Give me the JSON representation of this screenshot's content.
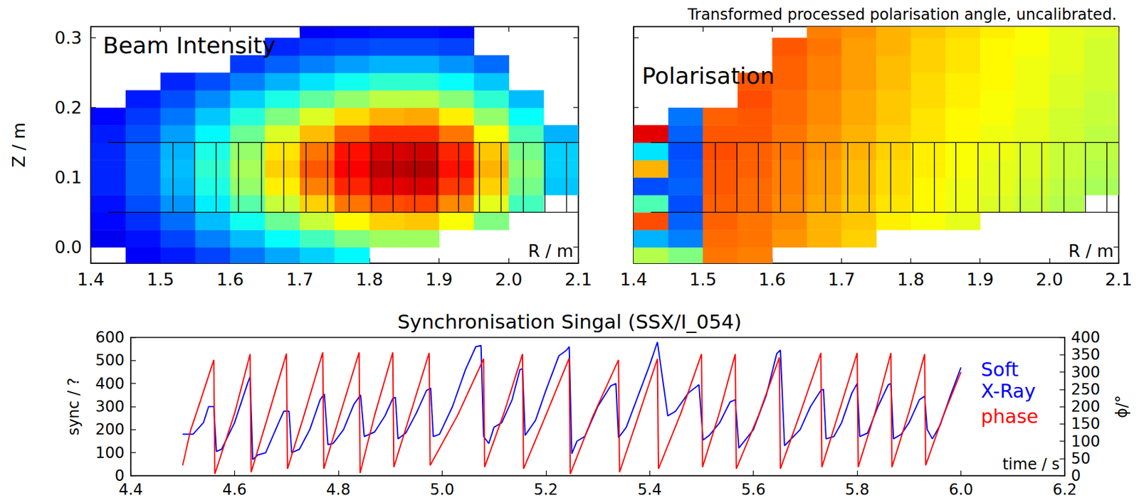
{
  "chart_data": [
    {
      "type": "heatmap",
      "title": "Beam Intensity",
      "xlabel": "R / m",
      "ylabel": "Z / m",
      "xlim": [
        1.4,
        2.1
      ],
      "xticks": [
        1.4,
        1.5,
        1.6,
        1.7,
        1.8,
        1.9,
        {
          "value": 2,
          "label": "2.0"
        },
        2.1
      ],
      "ylim": [
        -0.023,
        0.316
      ],
      "yticks": [
        {
          "value": 0,
          "label": "0.0"
        },
        0.1,
        0.2,
        0.3
      ],
      "grid": false,
      "color_range": [
        0,
        1
      ],
      "r": [
        1.425,
        1.475,
        1.525,
        1.575,
        1.625,
        1.675,
        1.725,
        1.775,
        1.825,
        1.875,
        1.925,
        1.975,
        2.025,
        2.075
      ],
      "z": [
        -0.0125,
        0.0125,
        0.0375,
        0.0625,
        0.0875,
        0.1125,
        0.1375,
        0.1625,
        0.1875,
        0.2125,
        0.2375,
        0.2625,
        0.2875,
        0.3125
      ],
      "cells": [
        [
          null,
          0.12,
          0.15,
          0.19,
          0.24,
          0.29,
          0.33,
          0.37,
          null,
          null,
          null,
          null,
          null,
          null
        ],
        [
          0.11,
          0.14,
          0.19,
          0.25,
          0.31,
          0.38,
          0.44,
          0.5,
          0.53,
          0.53,
          null,
          null,
          null,
          null
        ],
        [
          0.13,
          0.17,
          0.23,
          0.31,
          0.39,
          0.48,
          0.57,
          0.63,
          0.67,
          0.68,
          0.62,
          0.5,
          null,
          null
        ],
        [
          0.14,
          0.2,
          0.27,
          0.36,
          0.46,
          0.57,
          0.67,
          0.76,
          0.8,
          0.81,
          0.74,
          0.6,
          0.44,
          null
        ],
        [
          0.16,
          0.22,
          0.3,
          0.4,
          0.52,
          0.64,
          0.75,
          0.84,
          0.9,
          0.91,
          0.82,
          0.67,
          0.49,
          0.32
        ],
        [
          0.16,
          0.22,
          0.31,
          0.42,
          0.54,
          0.67,
          0.79,
          0.88,
          0.94,
          0.95,
          0.86,
          0.7,
          0.51,
          0.33
        ],
        [
          0.16,
          0.22,
          0.3,
          0.4,
          0.52,
          0.65,
          0.76,
          0.86,
          0.91,
          0.92,
          0.84,
          0.68,
          0.49,
          0.33
        ],
        [
          0.15,
          0.2,
          0.28,
          0.37,
          0.48,
          0.59,
          0.69,
          0.78,
          0.83,
          0.83,
          0.76,
          0.62,
          0.45,
          0.3
        ],
        [
          0.13,
          0.18,
          0.24,
          0.32,
          0.41,
          0.5,
          0.59,
          0.66,
          0.7,
          0.71,
          0.64,
          0.52,
          0.38,
          null
        ],
        [
          null,
          0.15,
          0.2,
          0.26,
          0.33,
          0.4,
          0.47,
          0.52,
          0.56,
          0.56,
          0.51,
          0.42,
          0.31,
          null
        ],
        [
          null,
          null,
          0.16,
          0.2,
          0.25,
          0.3,
          0.35,
          0.39,
          0.42,
          0.42,
          0.38,
          0.32,
          null,
          null
        ],
        [
          null,
          null,
          null,
          null,
          0.18,
          0.22,
          0.25,
          0.28,
          0.3,
          0.3,
          0.27,
          0.23,
          null,
          null
        ],
        [
          null,
          null,
          null,
          null,
          null,
          0.16,
          0.18,
          0.19,
          0.2,
          0.2,
          0.19,
          null,
          null,
          null
        ],
        [
          null,
          null,
          null,
          null,
          null,
          null,
          0.12,
          0.13,
          0.14,
          0.14,
          0.13,
          null,
          null,
          null
        ]
      ],
      "channels": {
        "z": [
          0.05,
          0.15
        ],
        "r_range": [
          1.425,
          2.1
        ],
        "r_edges": [
          1.518,
          1.549,
          1.58,
          1.612,
          1.645,
          1.677,
          1.709,
          1.74,
          1.771,
          1.803,
          1.834,
          1.865,
          1.897,
          1.928,
          1.958,
          1.989,
          2.021,
          2.052,
          2.083
        ]
      }
    },
    {
      "type": "heatmap",
      "title": "Polarisation",
      "subtitle": "Transformed processed polarisation angle, uncalibrated.",
      "xlabel": "R / m",
      "xlim": [
        1.4,
        2.1
      ],
      "xticks": [
        1.4,
        1.5,
        1.6,
        1.7,
        1.8,
        1.9,
        {
          "value": 2,
          "label": "2.0"
        },
        2.1
      ],
      "ylim": [
        -0.023,
        0.316
      ],
      "yticks": [
        {
          "value": 0,
          "label": "0.0"
        },
        0.1,
        0.2,
        0.3
      ],
      "tick_labels": "x",
      "grid": false,
      "color_range": [
        0,
        1
      ],
      "r": [
        1.425,
        1.475,
        1.525,
        1.575,
        1.625,
        1.675,
        1.725,
        1.775,
        1.825,
        1.875,
        1.925,
        1.975,
        2.025,
        2.075
      ],
      "z": [
        -0.0125,
        0.0125,
        0.0375,
        0.0625,
        0.0875,
        0.1125,
        0.1375,
        0.1625,
        0.1875,
        0.2125,
        0.2375,
        0.2625,
        0.2875,
        0.3125
      ],
      "cells": [
        [
          0.55,
          0.5,
          0.76,
          0.75,
          null,
          null,
          null,
          null,
          null,
          null,
          null,
          null,
          null,
          null
        ],
        [
          0.3,
          0.25,
          0.77,
          0.76,
          0.73,
          0.7,
          0.67,
          null,
          null,
          null,
          null,
          null,
          null,
          null
        ],
        [
          0.8,
          0.22,
          0.78,
          0.76,
          0.74,
          0.7,
          0.68,
          0.64,
          0.62,
          0.6,
          null,
          null,
          null,
          null
        ],
        [
          0.45,
          0.2,
          0.78,
          0.77,
          0.74,
          0.71,
          0.68,
          0.65,
          0.63,
          0.61,
          0.59,
          0.57,
          0.55,
          null
        ],
        [
          0.2,
          0.22,
          0.79,
          0.77,
          0.75,
          0.72,
          0.69,
          0.66,
          0.63,
          0.61,
          0.6,
          0.58,
          0.56,
          0.54
        ],
        [
          0.7,
          0.21,
          0.79,
          0.78,
          0.75,
          0.72,
          0.69,
          0.66,
          0.64,
          0.62,
          0.6,
          0.59,
          0.57,
          0.55
        ],
        [
          0.35,
          0.2,
          0.8,
          0.78,
          0.76,
          0.73,
          0.7,
          0.67,
          0.64,
          0.62,
          0.61,
          0.59,
          0.57,
          0.56
        ],
        [
          0.9,
          0.22,
          0.79,
          0.79,
          0.76,
          0.73,
          0.7,
          0.67,
          0.65,
          0.63,
          0.61,
          0.6,
          0.58,
          0.56
        ],
        [
          null,
          0.24,
          0.78,
          0.79,
          0.77,
          0.74,
          0.71,
          0.68,
          0.65,
          0.63,
          0.62,
          0.6,
          0.58,
          0.57
        ],
        [
          null,
          null,
          null,
          0.8,
          0.77,
          0.74,
          0.71,
          0.68,
          0.66,
          0.64,
          0.62,
          0.61,
          0.59,
          0.57
        ],
        [
          null,
          null,
          null,
          0.79,
          0.78,
          0.75,
          0.72,
          0.69,
          0.66,
          0.64,
          0.63,
          0.61,
          0.59,
          0.58
        ],
        [
          null,
          null,
          null,
          null,
          0.78,
          0.75,
          0.72,
          0.69,
          0.67,
          0.65,
          0.63,
          0.61,
          0.6,
          0.58
        ],
        [
          null,
          null,
          null,
          null,
          0.79,
          0.76,
          0.72,
          0.7,
          0.67,
          0.65,
          0.63,
          0.62,
          0.6,
          0.58
        ],
        [
          null,
          null,
          null,
          null,
          null,
          0.75,
          0.73,
          0.7,
          0.68,
          0.66,
          0.64,
          0.62,
          0.6,
          0.59
        ]
      ],
      "channels": {
        "z": [
          0.05,
          0.15
        ],
        "r_range": [
          1.425,
          2.1
        ],
        "r_edges": [
          1.518,
          1.549,
          1.58,
          1.612,
          1.645,
          1.677,
          1.709,
          1.74,
          1.771,
          1.803,
          1.834,
          1.865,
          1.897,
          1.928,
          1.958,
          1.989,
          2.021,
          2.052,
          2.083
        ]
      }
    },
    {
      "type": "line",
      "title": "Synchronisation Singal (SSX/I_054)",
      "xlabel": "time / s",
      "ylabel": "sync / ?",
      "y2label": "ϕ/°",
      "xlim": [
        4.4,
        6.2
      ],
      "xticks": [
        4.4,
        4.6,
        4.8,
        {
          "value": 5,
          "label": "5.0"
        },
        5.2,
        5.4,
        5.6,
        5.8,
        {
          "value": 6,
          "label": "6.0"
        },
        6.2
      ],
      "ylim": [
        0,
        600
      ],
      "yticks": [
        0,
        100,
        200,
        300,
        400,
        500,
        600
      ],
      "y2lim": [
        0,
        400
      ],
      "y2ticks": [
        0,
        50,
        100,
        150,
        200,
        250,
        300,
        350,
        400
      ],
      "grid": false,
      "legend": "right",
      "series": [
        {
          "name": "Soft X-Ray",
          "color": "#0000ff",
          "x": [
            4.5,
            4.52,
            4.54,
            4.55,
            4.56,
            4.565,
            4.575,
            4.6,
            4.625,
            4.63,
            4.635,
            4.645,
            4.66,
            4.685,
            4.695,
            4.705,
            4.71,
            4.725,
            4.745,
            4.765,
            4.773,
            4.78,
            4.79,
            4.81,
            4.83,
            4.843,
            4.85,
            4.87,
            4.89,
            4.905,
            4.91,
            4.915,
            4.93,
            4.95,
            4.97,
            4.978,
            4.983,
            4.995,
            5.02,
            5.045,
            5.065,
            5.075,
            5.08,
            5.09,
            5.1,
            5.115,
            5.135,
            5.15,
            5.155,
            5.16,
            5.18,
            5.2,
            5.225,
            5.24,
            5.245,
            5.25,
            5.26,
            5.275,
            5.3,
            5.325,
            5.335,
            5.34,
            5.355,
            5.38,
            5.4,
            5.415,
            5.425,
            5.435,
            5.45,
            5.475,
            5.495,
            5.503,
            5.515,
            5.535,
            5.555,
            5.565,
            5.572,
            5.6,
            5.625,
            5.645,
            5.652,
            5.66,
            5.675,
            5.69,
            5.71,
            5.73,
            5.735,
            5.74,
            5.755,
            5.77,
            5.79,
            5.8,
            5.805,
            5.82,
            5.84,
            5.86,
            5.865,
            5.87,
            5.885,
            5.9,
            5.92,
            5.93,
            5.935,
            5.945,
            5.96,
            5.98,
            6.0
          ],
          "values": [
            180,
            180,
            230,
            300,
            300,
            105,
            115,
            230,
            400,
            430,
            70,
            90,
            100,
            230,
            280,
            280,
            100,
            115,
            200,
            330,
            355,
            135,
            140,
            200,
            310,
            350,
            170,
            190,
            260,
            335,
            340,
            160,
            185,
            270,
            370,
            380,
            170,
            180,
            300,
            460,
            560,
            565,
            170,
            140,
            210,
            230,
            330,
            460,
            465,
            175,
            240,
            370,
            520,
            545,
            560,
            95,
            150,
            170,
            300,
            390,
            400,
            165,
            210,
            360,
            480,
            580,
            420,
            260,
            280,
            360,
            395,
            155,
            175,
            230,
            320,
            330,
            120,
            200,
            350,
            530,
            545,
            130,
            165,
            200,
            300,
            370,
            375,
            160,
            170,
            230,
            360,
            400,
            170,
            185,
            300,
            395,
            400,
            160,
            180,
            230,
            330,
            345,
            200,
            160,
            220,
            350,
            470
          ]
        },
        {
          "name": "phase",
          "color": "#ff0000",
          "axis": "y2",
          "x": [
            4.5,
            4.515,
            4.535,
            4.56,
            4.562,
            4.6,
            4.63,
            4.632,
            4.665,
            4.7,
            4.702,
            4.735,
            4.77,
            4.772,
            4.805,
            4.84,
            4.842,
            4.87,
            4.905,
            4.907,
            4.94,
            4.975,
            4.977,
            5.03,
            5.08,
            5.082,
            5.12,
            5.155,
            5.157,
            5.2,
            5.245,
            5.247,
            5.29,
            5.34,
            5.342,
            5.38,
            5.415,
            5.417,
            5.46,
            5.5,
            5.502,
            5.535,
            5.565,
            5.567,
            5.61,
            5.65,
            5.652,
            5.69,
            5.73,
            5.732,
            5.765,
            5.8,
            5.802,
            5.835,
            5.865,
            5.867,
            5.9,
            5.93,
            5.932,
            5.965,
            6.0
          ],
          "values": [
            30,
            130,
            220,
            335,
            5,
            180,
            352,
            10,
            175,
            353,
            20,
            180,
            357,
            20,
            185,
            357,
            8,
            175,
            357,
            25,
            185,
            355,
            30,
            175,
            338,
            25,
            185,
            352,
            20,
            175,
            340,
            5,
            170,
            335,
            10,
            180,
            338,
            20,
            180,
            352,
            25,
            185,
            352,
            20,
            175,
            342,
            20,
            180,
            355,
            25,
            185,
            355,
            25,
            185,
            355,
            25,
            185,
            352,
            30,
            170,
            300
          ]
        }
      ]
    }
  ]
}
